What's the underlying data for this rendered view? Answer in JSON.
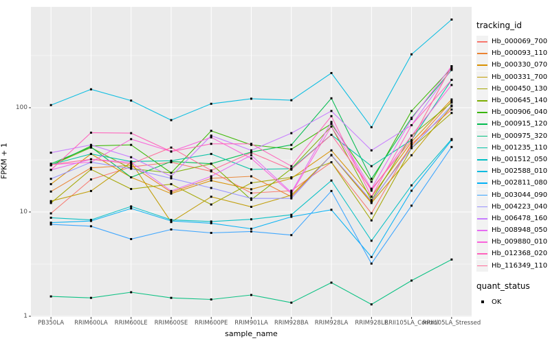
{
  "figure": {
    "background": "#FFFFFF",
    "panel_background": "#EBEBEB",
    "gridline_color": "#FFFFFF",
    "point_color": "#000000",
    "tick_color": "#333333"
  },
  "axes": {
    "x_title": "sample_name",
    "y_title": "FPKM + 1"
  },
  "legend": {
    "tracking_title": "tracking_id",
    "quant_title": "quant_status",
    "quant_items": [
      {
        "label": "OK"
      }
    ]
  },
  "chart_data": {
    "type": "line",
    "title": "",
    "xlabel": "sample_name",
    "ylabel": "FPKM + 1",
    "y_scale": "log10",
    "grid": "on",
    "legend_position": "right",
    "ylim": [
      1,
      900
    ],
    "y_ticks": [
      1,
      10,
      100
    ],
    "y_tick_labels": [
      "1",
      "10",
      "100"
    ],
    "y_minor_ticks": [
      3.162,
      31.62,
      316.2
    ],
    "categories": [
      "PB350LA",
      "RRIM600LA",
      "RRIM600LE",
      "RRIM600SE",
      "RRIM600PE",
      "RRIM901LA",
      "RRIM928BA",
      "RRIM928LA",
      "RRIM928LE",
      "RRII105LA_Control",
      "RRII105LA_Stressed"
    ],
    "series": [
      {
        "name": "Hb_000069_700",
        "color": "#F8766D",
        "values": [
          9.7,
          20.5,
          27,
          30,
          24.5,
          15.2,
          16,
          30,
          9.7,
          45,
          96
        ]
      },
      {
        "name": "Hb_000093_110",
        "color": "#EA8331",
        "values": [
          15.7,
          26.5,
          28,
          15.5,
          21,
          22,
          14,
          35,
          12.5,
          43,
          115
        ]
      },
      {
        "name": "Hb_000330_070",
        "color": "#D89000",
        "values": [
          18.5,
          36,
          21.5,
          15,
          20,
          16.5,
          21,
          39,
          14,
          47,
          120
        ]
      },
      {
        "name": "Hb_000331_700",
        "color": "#C09B00",
        "values": [
          12.7,
          15.9,
          30,
          8,
          14,
          11.2,
          14.5,
          35,
          12.2,
          35,
          103
        ]
      },
      {
        "name": "Hb_000450_130",
        "color": "#A3A500",
        "values": [
          12.2,
          25.6,
          16.6,
          18.5,
          11.8,
          19,
          21.5,
          30,
          8.3,
          41,
          89
        ]
      },
      {
        "name": "Hb_000645_140",
        "color": "#7CAE00",
        "values": [
          28,
          41.5,
          26,
          23.7,
          29,
          13.1,
          26,
          66,
          13,
          54,
          112
        ]
      },
      {
        "name": "Hb_000906_040",
        "color": "#39B600",
        "values": [
          28,
          43,
          44,
          23.7,
          60,
          44,
          40,
          70,
          19.5,
          93,
          240
        ]
      },
      {
        "name": "Hb_000915_120",
        "color": "#00BB4E",
        "values": [
          29,
          42,
          21.5,
          30.5,
          29,
          37.5,
          44,
          123,
          20.8,
          80,
          230
        ]
      },
      {
        "name": "Hb_000975_320",
        "color": "#00BF7D",
        "values": [
          1.55,
          1.5,
          1.7,
          1.5,
          1.45,
          1.6,
          1.35,
          2.1,
          1.3,
          2.2,
          3.5
        ]
      },
      {
        "name": "Hb_001235_110",
        "color": "#00C1A3",
        "values": [
          28.5,
          36,
          30.5,
          31,
          36,
          25.6,
          26,
          55,
          27.5,
          49,
          185
        ]
      },
      {
        "name": "Hb_001512_050",
        "color": "#00BFC4",
        "values": [
          8.8,
          8.4,
          11.3,
          8.4,
          8.1,
          8.5,
          9.4,
          20,
          5.3,
          18,
          50
        ]
      },
      {
        "name": "Hb_002588_010",
        "color": "#00BAE0",
        "values": [
          106,
          150,
          117,
          76,
          109,
          122,
          118,
          215,
          65,
          325,
          700
        ]
      },
      {
        "name": "Hb_002811_080",
        "color": "#00B0F6",
        "values": [
          7.9,
          8.2,
          10.8,
          8.2,
          7.8,
          6.9,
          9.0,
          10.5,
          3.7,
          16,
          49
        ]
      },
      {
        "name": "Hb_003044_090",
        "color": "#35A2FF",
        "values": [
          7.6,
          7.3,
          5.5,
          6.8,
          6.3,
          6.5,
          6.0,
          15.9,
          3.2,
          11.5,
          42
        ]
      },
      {
        "name": "Hb_004223_040",
        "color": "#9590FF",
        "values": [
          20.8,
          30,
          26,
          21,
          17,
          13.5,
          13.5,
          35.2,
          12.8,
          41,
          105
        ]
      },
      {
        "name": "Hb_006478_160",
        "color": "#C77CFF",
        "values": [
          37,
          44,
          33.5,
          22,
          54,
          39,
          57,
          93,
          39,
          68,
          235
        ]
      },
      {
        "name": "Hb_008948_050",
        "color": "#E76BF3",
        "values": [
          25.3,
          32,
          30,
          15.9,
          22,
          35,
          15.4,
          73,
          16.7,
          78,
          250
        ]
      },
      {
        "name": "Hb_009880_010",
        "color": "#FA62DB",
        "values": [
          28.5,
          30,
          50,
          38,
          52,
          32.6,
          15,
          66,
          16,
          54,
          165
        ]
      },
      {
        "name": "Hb_012368_020",
        "color": "#FF62BC",
        "values": [
          25.3,
          57.6,
          57,
          38,
          45,
          45,
          27.5,
          83,
          14,
          68,
          185
        ]
      },
      {
        "name": "Hb_116349_110",
        "color": "#FF6A98",
        "values": [
          28.5,
          32,
          29,
          41.5,
          25,
          37,
          25.5,
          55,
          16.5,
          49,
          250
        ]
      }
    ]
  }
}
